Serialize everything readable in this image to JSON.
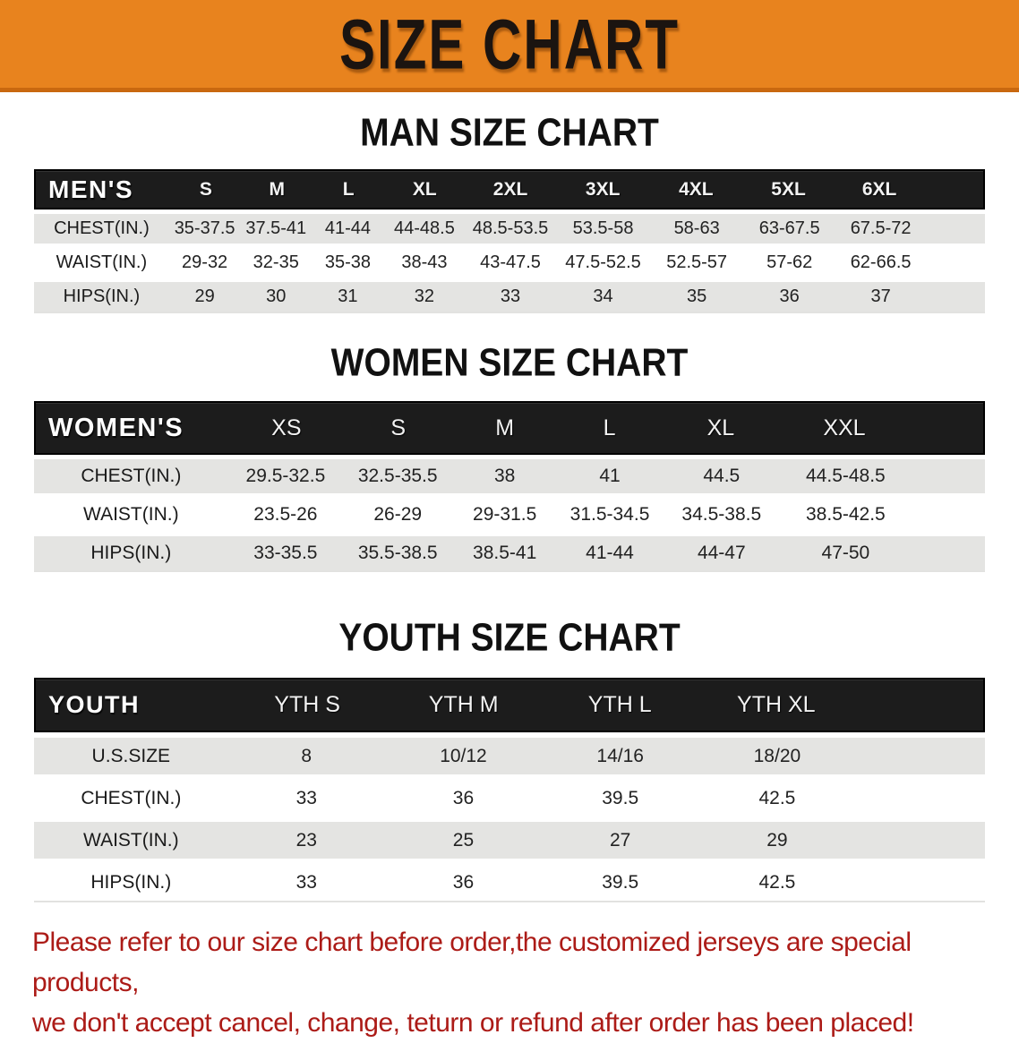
{
  "banner": {
    "title": "SIZE CHART",
    "bg_color": "#E8831E",
    "edge_color": "#C9680F"
  },
  "sections": [
    {
      "heading": "MAN SIZE CHART",
      "table": {
        "header_label": "MEN'S",
        "sizes": [
          "S",
          "M",
          "L",
          "XL",
          "2XL",
          "3XL",
          "4XL",
          "5XL",
          "6XL"
        ],
        "rows": [
          {
            "label": "CHEST(IN.)",
            "values": [
              "35-37.5",
              "37.5-41",
              "41-44",
              "44-48.5",
              "48.5-53.5",
              "53.5-58",
              "58-63",
              "63-67.5",
              "67.5-72"
            ]
          },
          {
            "label": "WAIST(IN.)",
            "values": [
              "29-32",
              "32-35",
              "35-38",
              "38-43",
              "43-47.5",
              "47.5-52.5",
              "52.5-57",
              "57-62",
              "62-66.5"
            ]
          },
          {
            "label": "HIPS(IN.)",
            "values": [
              "29",
              "30",
              "31",
              "32",
              "33",
              "34",
              "35",
              "36",
              "37"
            ]
          }
        ]
      }
    },
    {
      "heading": "WOMEN SIZE CHART",
      "table": {
        "header_label": "WOMEN'S",
        "sizes": [
          "XS",
          "S",
          "M",
          "L",
          "XL",
          "XXL"
        ],
        "rows": [
          {
            "label": "CHEST(IN.)",
            "values": [
              "29.5-32.5",
              "32.5-35.5",
              "38",
              "41",
              "44.5",
              "44.5-48.5"
            ]
          },
          {
            "label": "WAIST(IN.)",
            "values": [
              "23.5-26",
              "26-29",
              "29-31.5",
              "31.5-34.5",
              "34.5-38.5",
              "38.5-42.5"
            ]
          },
          {
            "label": "HIPS(IN.)",
            "values": [
              "33-35.5",
              "35.5-38.5",
              "38.5-41",
              "41-44",
              "44-47",
              "47-50"
            ]
          }
        ]
      }
    },
    {
      "heading": "YOUTH SIZE CHART",
      "table": {
        "header_label": "YOUTH",
        "sizes": [
          "YTH S",
          "YTH M",
          "YTH L",
          "YTH XL"
        ],
        "rows": [
          {
            "label": "U.S.SIZE",
            "values": [
              "8",
              "10/12",
              "14/16",
              "18/20"
            ]
          },
          {
            "label": "CHEST(IN.)",
            "values": [
              "33",
              "36",
              "39.5",
              "42.5"
            ]
          },
          {
            "label": "WAIST(IN.)",
            "values": [
              "23",
              "25",
              "27",
              "29"
            ]
          },
          {
            "label": "HIPS(IN.)",
            "values": [
              "33",
              "36",
              "39.5",
              "42.5"
            ]
          }
        ]
      }
    }
  ],
  "disclaimer": {
    "line1": "Please refer to our size chart before order,the customized jerseys are special products,",
    "line2": "we don't accept cancel, change, teturn or refund after order has been placed!",
    "text_color": "#AC1B17"
  }
}
